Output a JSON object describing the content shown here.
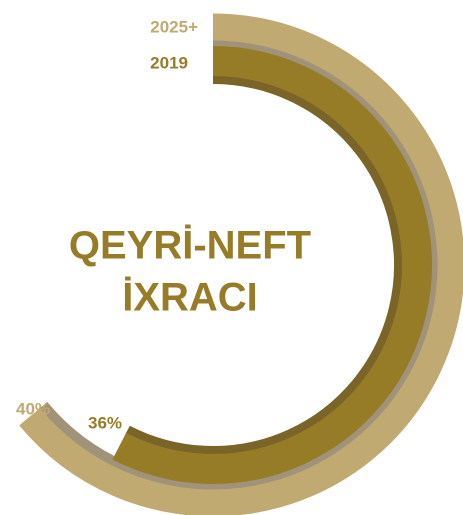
{
  "chart_data": {
    "type": "radial_bar",
    "title": [
      "QEYRİ-NEFT",
      "İXRACI"
    ],
    "categories": [
      "2025+",
      "2019"
    ],
    "values": [
      40,
      36
    ],
    "value_labels": [
      "40%",
      "36%"
    ],
    "colors": [
      "#c0aa72",
      "#977c28"
    ],
    "ylim": [
      0,
      62.5
    ]
  }
}
